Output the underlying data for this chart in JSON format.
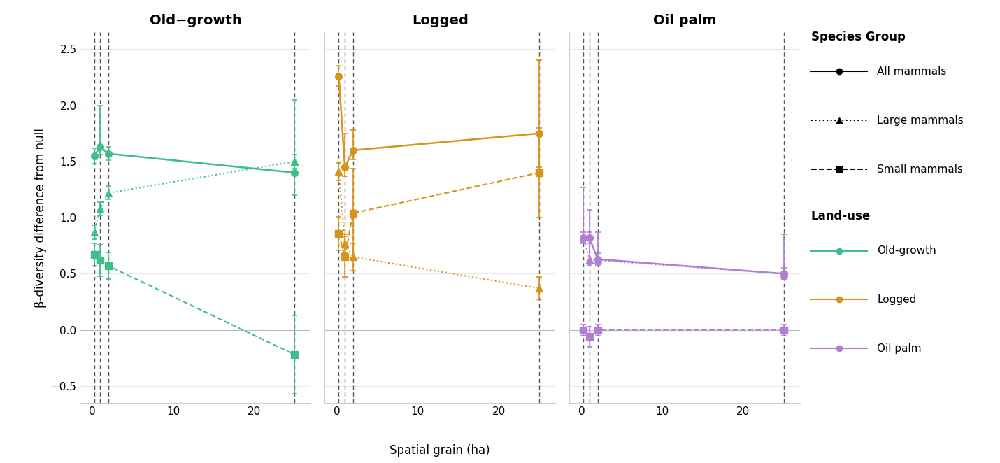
{
  "colors": {
    "old_growth": "#3dbf8a",
    "logged": "#d4951a",
    "oil_palm": "#b07fd4"
  },
  "panels": [
    "Old−growth",
    "Logged",
    "Oil palm"
  ],
  "ylim": [
    -0.65,
    2.65
  ],
  "yticks": [
    -0.5,
    0.0,
    0.5,
    1.0,
    1.5,
    2.0,
    2.5
  ],
  "ylabel": "β-diversity difference from null",
  "xlabel": "Spatial grain (ha)",
  "vlines": [
    0.25,
    1.0,
    2.0,
    25.0
  ],
  "xlim": [
    -1.5,
    27
  ],
  "xticks": [
    0,
    10,
    20
  ],
  "old_growth": {
    "all_mammals": {
      "x": [
        0.25,
        1.0,
        2.0,
        25.0
      ],
      "y": [
        1.55,
        1.63,
        1.57,
        1.4
      ],
      "yerr_lo": [
        0.07,
        0.07,
        0.06,
        0.2
      ],
      "yerr_hi": [
        0.07,
        0.37,
        0.06,
        0.65
      ]
    },
    "large_mammals": {
      "x": [
        0.25,
        1.0,
        2.0,
        25.0
      ],
      "y": [
        0.87,
        1.08,
        1.22,
        1.5
      ],
      "yerr_lo": [
        0.06,
        0.06,
        0.06,
        0.06
      ],
      "yerr_hi": [
        0.06,
        0.06,
        0.06,
        0.06
      ]
    },
    "small_mammals": {
      "x": [
        0.25,
        1.0,
        2.0,
        25.0
      ],
      "y": [
        0.67,
        0.62,
        0.57,
        -0.22
      ],
      "yerr_lo": [
        0.1,
        0.14,
        0.12,
        0.35
      ],
      "yerr_hi": [
        0.1,
        0.14,
        0.12,
        0.35
      ]
    }
  },
  "logged": {
    "all_mammals": {
      "x": [
        0.25,
        1.0,
        2.0,
        25.0
      ],
      "y": [
        2.26,
        1.45,
        1.6,
        1.75
      ],
      "yerr_lo": [
        0.09,
        0.08,
        0.08,
        0.3
      ],
      "yerr_hi": [
        0.09,
        0.3,
        0.18,
        0.65
      ]
    },
    "large_mammals": {
      "x": [
        0.25,
        1.0,
        2.0,
        25.0
      ],
      "y": [
        1.41,
        0.77,
        0.65,
        0.37
      ],
      "yerr_lo": [
        0.08,
        0.08,
        0.12,
        0.1
      ],
      "yerr_hi": [
        0.08,
        0.08,
        0.12,
        0.1
      ]
    },
    "small_mammals": {
      "x": [
        0.25,
        1.0,
        2.0,
        25.0
      ],
      "y": [
        0.86,
        0.65,
        1.04,
        1.4
      ],
      "yerr_lo": [
        0.15,
        0.18,
        0.4,
        0.4
      ],
      "yerr_hi": [
        0.15,
        0.18,
        0.4,
        0.4
      ]
    }
  },
  "oil_palm": {
    "all_mammals": {
      "x": [
        0.25,
        1.0,
        2.0,
        25.0
      ],
      "y": [
        0.82,
        0.82,
        0.63,
        0.5
      ],
      "yerr_lo": [
        0.05,
        0.05,
        0.05,
        0.05
      ],
      "yerr_hi": [
        0.05,
        0.05,
        0.05,
        0.05
      ]
    },
    "large_mammals": {
      "x": [
        0.25,
        1.0,
        2.0,
        25.0
      ],
      "y": [
        0.83,
        0.63,
        0.62,
        0.5
      ],
      "yerr_lo": [
        0.05,
        0.05,
        0.05,
        0.05
      ],
      "yerr_hi": [
        0.44,
        0.44,
        0.25,
        0.35
      ]
    },
    "small_mammals": {
      "x": [
        0.25,
        1.0,
        2.0,
        25.0
      ],
      "y": [
        0.0,
        -0.06,
        0.0,
        0.0
      ],
      "yerr_lo": [
        0.05,
        0.09,
        0.05,
        0.05
      ],
      "yerr_hi": [
        0.05,
        0.09,
        0.05,
        0.05
      ]
    }
  },
  "title_fontsize": 14,
  "label_fontsize": 12,
  "tick_fontsize": 11,
  "legend_title_fontsize": 12,
  "legend_fontsize": 11,
  "bg_color": "#ffffff",
  "grid_color": "#e8e8e8"
}
